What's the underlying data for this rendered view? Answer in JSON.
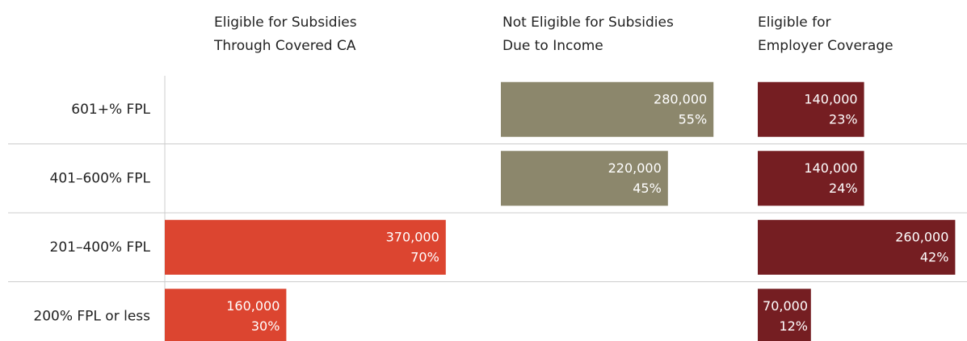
{
  "chart_data": {
    "type": "bar",
    "categories": [
      "601+% FPL",
      "401–600% FPL",
      "201–400% FPL",
      "200% FPL or less"
    ],
    "xlim": [
      0,
      400000
    ],
    "series": [
      {
        "name": [
          "Eligible for Subsidies",
          "Through Covered CA"
        ],
        "color": "#dc4530",
        "values": [
          null,
          null,
          370000,
          160000
        ],
        "value_labels": [
          null,
          null,
          "370,000",
          "160,000"
        ],
        "shares": [
          null,
          null,
          70,
          30
        ],
        "share_labels": [
          null,
          null,
          "70%",
          "30%"
        ]
      },
      {
        "name": [
          "Not Eligible for Subsidies",
          "Due to Income"
        ],
        "color": "#8c876c",
        "values": [
          280000,
          220000,
          null,
          null
        ],
        "value_labels": [
          "280,000",
          "220,000",
          null,
          null
        ],
        "shares": [
          55,
          45,
          null,
          null
        ],
        "share_labels": [
          "55%",
          "45%",
          null,
          null
        ]
      },
      {
        "name": [
          "Eligible for",
          "Employer Coverage"
        ],
        "color": "#751e22",
        "values": [
          140000,
          140000,
          260000,
          70000
        ],
        "value_labels": [
          "140,000",
          "140,000",
          "260,000",
          "70,000"
        ],
        "shares": [
          23,
          24,
          42,
          12
        ],
        "share_labels": [
          "23%",
          "24%",
          "42%",
          "12%"
        ]
      }
    ]
  }
}
